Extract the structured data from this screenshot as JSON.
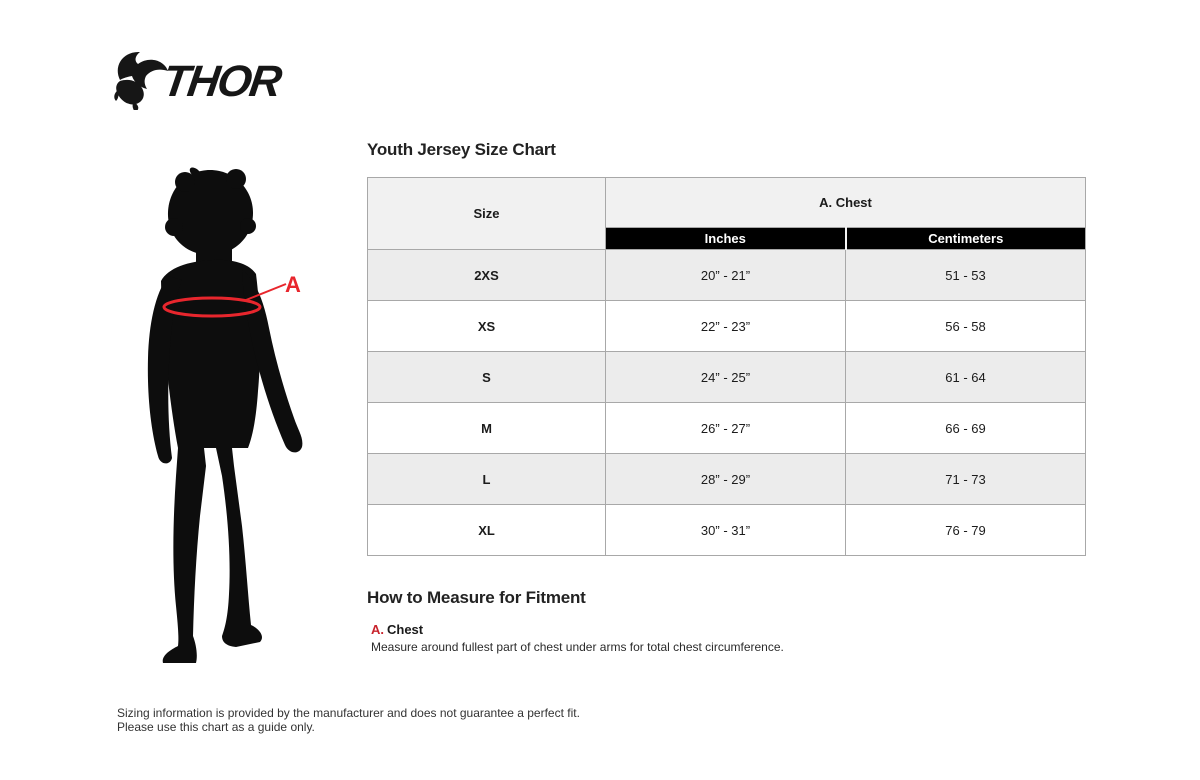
{
  "brand": {
    "name": "THOR",
    "icon": "thor-goat-icon"
  },
  "diagram": {
    "label": "A",
    "accent_color": "#e8262d"
  },
  "size_chart": {
    "title": "Youth Jersey Size Chart",
    "columns": {
      "size": "Size",
      "group": "A. Chest",
      "sub_inches": "Inches",
      "sub_centimeters": "Centimeters"
    },
    "rows": [
      {
        "size": "2XS",
        "inches": "20” - 21”",
        "centimeters": "51 - 53"
      },
      {
        "size": "XS",
        "inches": "22” - 23”",
        "centimeters": "56 - 58"
      },
      {
        "size": "S",
        "inches": "24” - 25”",
        "centimeters": "61 - 64"
      },
      {
        "size": "M",
        "inches": "26” - 27”",
        "centimeters": "66 - 69"
      },
      {
        "size": "L",
        "inches": "28” - 29”",
        "centimeters": "71 - 73"
      },
      {
        "size": "XL",
        "inches": "30” - 31”",
        "centimeters": "76 - 79"
      }
    ]
  },
  "measure_section": {
    "title": "How to Measure for Fitment",
    "items": [
      {
        "key": "A.",
        "name": "Chest",
        "description": "Measure around fullest part of chest under arms for total chest circumference."
      }
    ]
  },
  "disclaimer": {
    "line1": "Sizing information is provided by the manufacturer and does not guarantee a perfect fit.",
    "line2": "Please use this chart as a guide only."
  },
  "colors": {
    "accent_red": "#c8232c",
    "table_header_bg": "#f1f1f1",
    "table_subheader_bg": "#000000",
    "table_alt_row_bg": "#ececec",
    "table_border": "#a8a8a8"
  }
}
